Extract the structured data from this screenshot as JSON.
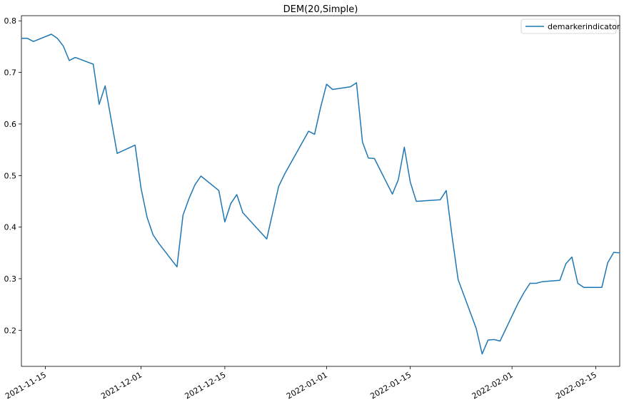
{
  "chart_data": {
    "type": "line",
    "title": "DEM(20,Simple)",
    "xlabel": "",
    "ylabel": "",
    "xlim": [
      "2021-11-11",
      "2022-02-19"
    ],
    "ylim": [
      0.13,
      0.81
    ],
    "x_ticks": [
      "2021-11-15",
      "2021-12-01",
      "2021-12-15",
      "2022-01-01",
      "2022-01-15",
      "2022-02-01",
      "2022-02-15"
    ],
    "y_ticks": [
      0.2,
      0.3,
      0.4,
      0.5,
      0.6,
      0.7,
      0.8
    ],
    "y_tick_labels": [
      "0.2",
      "0.3",
      "0.4",
      "0.5",
      "0.6",
      "0.7",
      "0.8"
    ],
    "grid": false,
    "legend": {
      "position": "top-right",
      "entries": [
        "demarkerindicator"
      ]
    },
    "colors": {
      "series": "#1f77b4"
    },
    "series": [
      {
        "name": "demarkerindicator",
        "points": [
          [
            "2021-11-11",
            0.766
          ],
          [
            "2021-11-12",
            0.766
          ],
          [
            "2021-11-13",
            0.76
          ],
          [
            "2021-11-16",
            0.774
          ],
          [
            "2021-11-17",
            0.766
          ],
          [
            "2021-11-18",
            0.751
          ],
          [
            "2021-11-19",
            0.723
          ],
          [
            "2021-11-20",
            0.729
          ],
          [
            "2021-11-23",
            0.716
          ],
          [
            "2021-11-24",
            0.638
          ],
          [
            "2021-11-25",
            0.674
          ],
          [
            "2021-11-27",
            0.543
          ],
          [
            "2021-11-30",
            0.559
          ],
          [
            "2021-12-01",
            0.475
          ],
          [
            "2021-12-02",
            0.419
          ],
          [
            "2021-12-03",
            0.385
          ],
          [
            "2021-12-04",
            0.368
          ],
          [
            "2021-12-07",
            0.323
          ],
          [
            "2021-12-08",
            0.423
          ],
          [
            "2021-12-09",
            0.455
          ],
          [
            "2021-12-10",
            0.482
          ],
          [
            "2021-12-11",
            0.499
          ],
          [
            "2021-12-14",
            0.471
          ],
          [
            "2021-12-15",
            0.41
          ],
          [
            "2021-12-16",
            0.446
          ],
          [
            "2021-12-17",
            0.463
          ],
          [
            "2021-12-18",
            0.428
          ],
          [
            "2021-12-22",
            0.377
          ],
          [
            "2021-12-24",
            0.479
          ],
          [
            "2021-12-25",
            0.503
          ],
          [
            "2021-12-29",
            0.586
          ],
          [
            "2021-12-30",
            0.58
          ],
          [
            "2021-12-31",
            0.632
          ],
          [
            "2022-01-01",
            0.677
          ],
          [
            "2022-01-02",
            0.667
          ],
          [
            "2022-01-05",
            0.672
          ],
          [
            "2022-01-06",
            0.68
          ],
          [
            "2022-01-07",
            0.565
          ],
          [
            "2022-01-08",
            0.534
          ],
          [
            "2022-01-09",
            0.533
          ],
          [
            "2022-01-12",
            0.464
          ],
          [
            "2022-01-13",
            0.492
          ],
          [
            "2022-01-14",
            0.555
          ],
          [
            "2022-01-15",
            0.487
          ],
          [
            "2022-01-16",
            0.45
          ],
          [
            "2022-01-20",
            0.453
          ],
          [
            "2022-01-21",
            0.471
          ],
          [
            "2022-01-22",
            0.38
          ],
          [
            "2022-01-23",
            0.298
          ],
          [
            "2022-01-26",
            0.204
          ],
          [
            "2022-01-27",
            0.154
          ],
          [
            "2022-01-28",
            0.181
          ],
          [
            "2022-01-29",
            0.182
          ],
          [
            "2022-01-30",
            0.179
          ],
          [
            "2022-02-02",
            0.252
          ],
          [
            "2022-02-03",
            0.273
          ],
          [
            "2022-02-04",
            0.291
          ],
          [
            "2022-02-05",
            0.291
          ],
          [
            "2022-02-06",
            0.294
          ],
          [
            "2022-02-09",
            0.297
          ],
          [
            "2022-02-10",
            0.329
          ],
          [
            "2022-02-11",
            0.342
          ],
          [
            "2022-02-12",
            0.291
          ],
          [
            "2022-02-13",
            0.283
          ],
          [
            "2022-02-16",
            0.283
          ],
          [
            "2022-02-17",
            0.331
          ],
          [
            "2022-02-18",
            0.351
          ],
          [
            "2022-02-19",
            0.35
          ],
          [
            "2022-02-20",
            0.365
          ]
        ]
      }
    ]
  }
}
